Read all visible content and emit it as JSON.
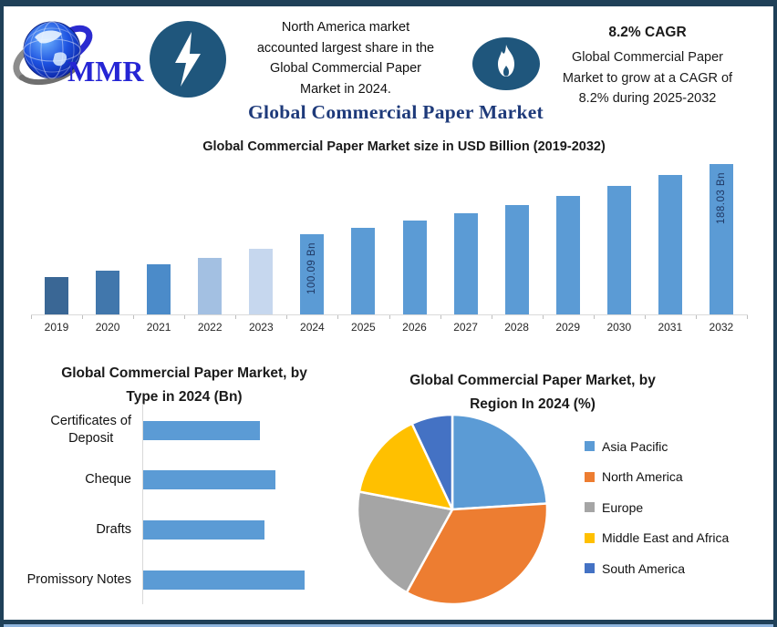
{
  "frame": {
    "border_color": "#1f4058",
    "bottom_accent_color": "#8fb4dc",
    "background": "#ffffff"
  },
  "header": {
    "logo_brand": "MMR",
    "highlight_text": "North America market\naccounted largest share in the\nGlobal Commercial Paper\nMarket in 2024.",
    "title": "Global Commercial Paper Market",
    "title_color": "#1e3a7a",
    "cagr_heading": "8.2% CAGR",
    "cagr_text": "Global Commercial Paper\nMarket to grow at a CAGR of\n8.2% during 2025-2032",
    "icon_color": "#1f567c",
    "icons": [
      "globe-logo-icon",
      "lightning-icon",
      "flame-icon"
    ]
  },
  "chart_data": [
    {
      "id": "market_size",
      "type": "bar",
      "title": "Global Commercial Paper Market size in USD Billion (2019-2032)",
      "xlabel": "",
      "ylabel": "USD Billion",
      "ylim": [
        0,
        200
      ],
      "grid": false,
      "categories": [
        "2019",
        "2020",
        "2021",
        "2022",
        "2023",
        "2024",
        "2025",
        "2026",
        "2027",
        "2028",
        "2029",
        "2030",
        "2031",
        "2032"
      ],
      "values": [
        47,
        55,
        63,
        71,
        82,
        100.09,
        108.3,
        117.2,
        126.8,
        137.2,
        148.4,
        160.6,
        173.8,
        188.03
      ],
      "labeled_values": {
        "2024": 100.09,
        "2032": 188.03
      },
      "bar_labels": [
        "",
        "",
        "",
        "",
        "",
        "100.09 Bn",
        "",
        "",
        "",
        "",
        "",
        "",
        "",
        "188.03 Bn"
      ],
      "bar_label_color": "#1f3864",
      "bar_colors": [
        "#3a6795",
        "#4177ac",
        "#4b8bc9",
        "#a3c0e2",
        "#c6d7ee",
        "#5b9bd5",
        "#5b9bd5",
        "#5b9bd5",
        "#5b9bd5",
        "#5b9bd5",
        "#5b9bd5",
        "#5b9bd5",
        "#5b9bd5",
        "#5b9bd5"
      ]
    },
    {
      "id": "by_type",
      "type": "bar",
      "orientation": "horizontal",
      "title": "Global Commercial Paper Market, by\nType in 2024 (Bn)",
      "grid": false,
      "categories": [
        "Certificates of Deposit",
        "Cheque",
        "Drafts",
        "Promissory Notes"
      ],
      "wrapped_categories": [
        "Certificates of\nDeposit",
        "Cheque",
        "Drafts",
        "Promissory Notes"
      ],
      "values": [
        22,
        25,
        23,
        30.5
      ],
      "bar_color": "#5b9bd5"
    },
    {
      "id": "by_region",
      "type": "pie",
      "title": "Global Commercial Paper Market, by\nRegion In 2024 (%)",
      "legend_position": "right",
      "start_angle_deg": 0,
      "slices": [
        {
          "name": "Asia Pacific",
          "value": 24,
          "color": "#5b9bd5"
        },
        {
          "name": "North America",
          "value": 34,
          "color": "#ed7d31"
        },
        {
          "name": "Europe",
          "value": 20,
          "color": "#a5a5a5"
        },
        {
          "name": "Middle East and Africa",
          "value": 15,
          "color": "#ffc000"
        },
        {
          "name": "South America",
          "value": 7,
          "color": "#4472c4"
        }
      ]
    }
  ]
}
